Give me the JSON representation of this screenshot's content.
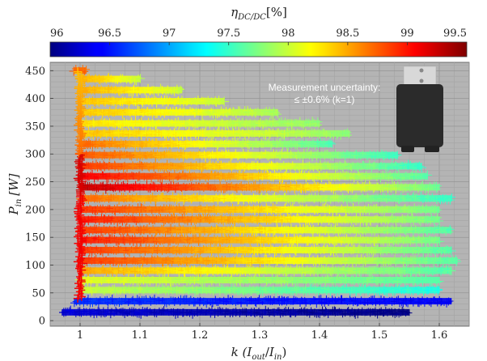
{
  "chart_data": {
    "type": "scatter",
    "title": "",
    "xlabel": "k (I_out/I_in)",
    "xlabel_parts": {
      "pre": "k (",
      "I1": "I",
      "s1": "out",
      "slash": "/",
      "I2": "I",
      "s2": "in",
      "post": ")"
    },
    "ylabel": "P_in [W]",
    "ylabel_parts": {
      "P": "P",
      "sub": "in",
      "unit": "[W]"
    },
    "xlim": [
      0.95,
      1.65
    ],
    "ylim": [
      -10,
      465
    ],
    "x_ticks": [
      "1",
      "1.1",
      "1.2",
      "1.3",
      "1.4",
      "1.5",
      "1.6"
    ],
    "x_tick_values": [
      1,
      1.1,
      1.2,
      1.3,
      1.4,
      1.5,
      1.6
    ],
    "y_ticks": [
      "0",
      "50",
      "100",
      "150",
      "200",
      "250",
      "300",
      "350",
      "400",
      "450"
    ],
    "y_tick_values": [
      0,
      50,
      100,
      150,
      200,
      250,
      300,
      350,
      400,
      450
    ],
    "grid": true,
    "colorbar": {
      "label": "η_DC/DC[%]",
      "label_parts": {
        "eta": "η",
        "sub": "DC/DC",
        "unit": "[%]"
      },
      "ticks": [
        "96",
        "96.5",
        "97",
        "97.5",
        "98",
        "98.5",
        "99",
        "99.5"
      ],
      "range": [
        96,
        99.5
      ],
      "colormap": "jet",
      "placement": "top"
    },
    "annotation": {
      "line1": "Measurement uncertainty:",
      "line2": "≤ ±0.6% (k=1)"
    },
    "series": [
      {
        "name": "P=15",
        "y": 15,
        "k_start": 0.97,
        "k_end": 1.55,
        "eta_start": 96.3,
        "eta_end": 96.0
      },
      {
        "name": "P=35",
        "y": 35,
        "k_start": 0.99,
        "k_end": 1.62,
        "eta_start": 96.6,
        "eta_end": 96.4
      },
      {
        "name": "P=55",
        "y": 55,
        "k_start": 1.0,
        "k_end": 1.6,
        "eta_start": 98.0,
        "eta_end": 97.4
      },
      {
        "name": "P=73",
        "y": 73,
        "k_start": 1.0,
        "k_end": 1.6,
        "eta_start": 98.1,
        "eta_end": 97.6
      },
      {
        "name": "P=90",
        "y": 90,
        "k_start": 1.0,
        "k_end": 1.62,
        "eta_start": 98.5,
        "eta_end": 97.6
      },
      {
        "name": "P=108",
        "y": 108,
        "k_start": 1.0,
        "k_end": 1.63,
        "eta_start": 98.9,
        "eta_end": 97.6
      },
      {
        "name": "P=127",
        "y": 127,
        "k_start": 1.0,
        "k_end": 1.62,
        "eta_start": 98.9,
        "eta_end": 97.6
      },
      {
        "name": "P=145",
        "y": 145,
        "k_start": 1.0,
        "k_end": 1.6,
        "eta_start": 99.0,
        "eta_end": 97.7
      },
      {
        "name": "P=163",
        "y": 163,
        "k_start": 1.0,
        "k_end": 1.62,
        "eta_start": 98.9,
        "eta_end": 97.6
      },
      {
        "name": "P=182",
        "y": 182,
        "k_start": 1.0,
        "k_end": 1.6,
        "eta_start": 99.0,
        "eta_end": 97.7
      },
      {
        "name": "P=200",
        "y": 200,
        "k_start": 1.0,
        "k_end": 1.6,
        "eta_start": 98.9,
        "eta_end": 97.7
      },
      {
        "name": "P=220",
        "y": 220,
        "k_start": 1.0,
        "k_end": 1.62,
        "eta_start": 98.7,
        "eta_end": 97.5
      },
      {
        "name": "P=240",
        "y": 240,
        "k_start": 1.0,
        "k_end": 1.6,
        "eta_start": 99.3,
        "eta_end": 97.7
      },
      {
        "name": "P=260",
        "y": 260,
        "k_start": 1.0,
        "k_end": 1.58,
        "eta_start": 99.1,
        "eta_end": 97.6
      },
      {
        "name": "P=278",
        "y": 278,
        "k_start": 1.0,
        "k_end": 1.57,
        "eta_start": 98.9,
        "eta_end": 97.5
      },
      {
        "name": "P=298",
        "y": 298,
        "k_start": 1.0,
        "k_end": 1.53,
        "eta_start": 98.8,
        "eta_end": 97.5
      },
      {
        "name": "P=318",
        "y": 318,
        "k_start": 1.0,
        "k_end": 1.42,
        "eta_start": 98.7,
        "eta_end": 97.6
      },
      {
        "name": "P=337",
        "y": 337,
        "k_start": 1.0,
        "k_end": 1.45,
        "eta_start": 98.4,
        "eta_end": 97.8
      },
      {
        "name": "P=355",
        "y": 355,
        "k_start": 1.0,
        "k_end": 1.4,
        "eta_start": 98.3,
        "eta_end": 97.8
      },
      {
        "name": "P=375",
        "y": 375,
        "k_start": 1.0,
        "k_end": 1.33,
        "eta_start": 98.4,
        "eta_end": 97.9
      },
      {
        "name": "P=395",
        "y": 395,
        "k_start": 1.0,
        "k_end": 1.24,
        "eta_start": 98.4,
        "eta_end": 98.0
      },
      {
        "name": "P=415",
        "y": 415,
        "k_start": 1.0,
        "k_end": 1.17,
        "eta_start": 98.5,
        "eta_end": 98.0
      },
      {
        "name": "P=435",
        "y": 435,
        "k_start": 1.0,
        "k_end": 1.1,
        "eta_start": 98.5,
        "eta_end": 98.0
      },
      {
        "name": "P=450",
        "y": 450,
        "k_start": 0.99,
        "k_end": 1.01,
        "eta_start": 98.7,
        "eta_end": 98.7
      }
    ],
    "vertical_trace": {
      "k": 1.0,
      "y_from": 40,
      "y_to": 450,
      "eta": 99.0
    }
  }
}
